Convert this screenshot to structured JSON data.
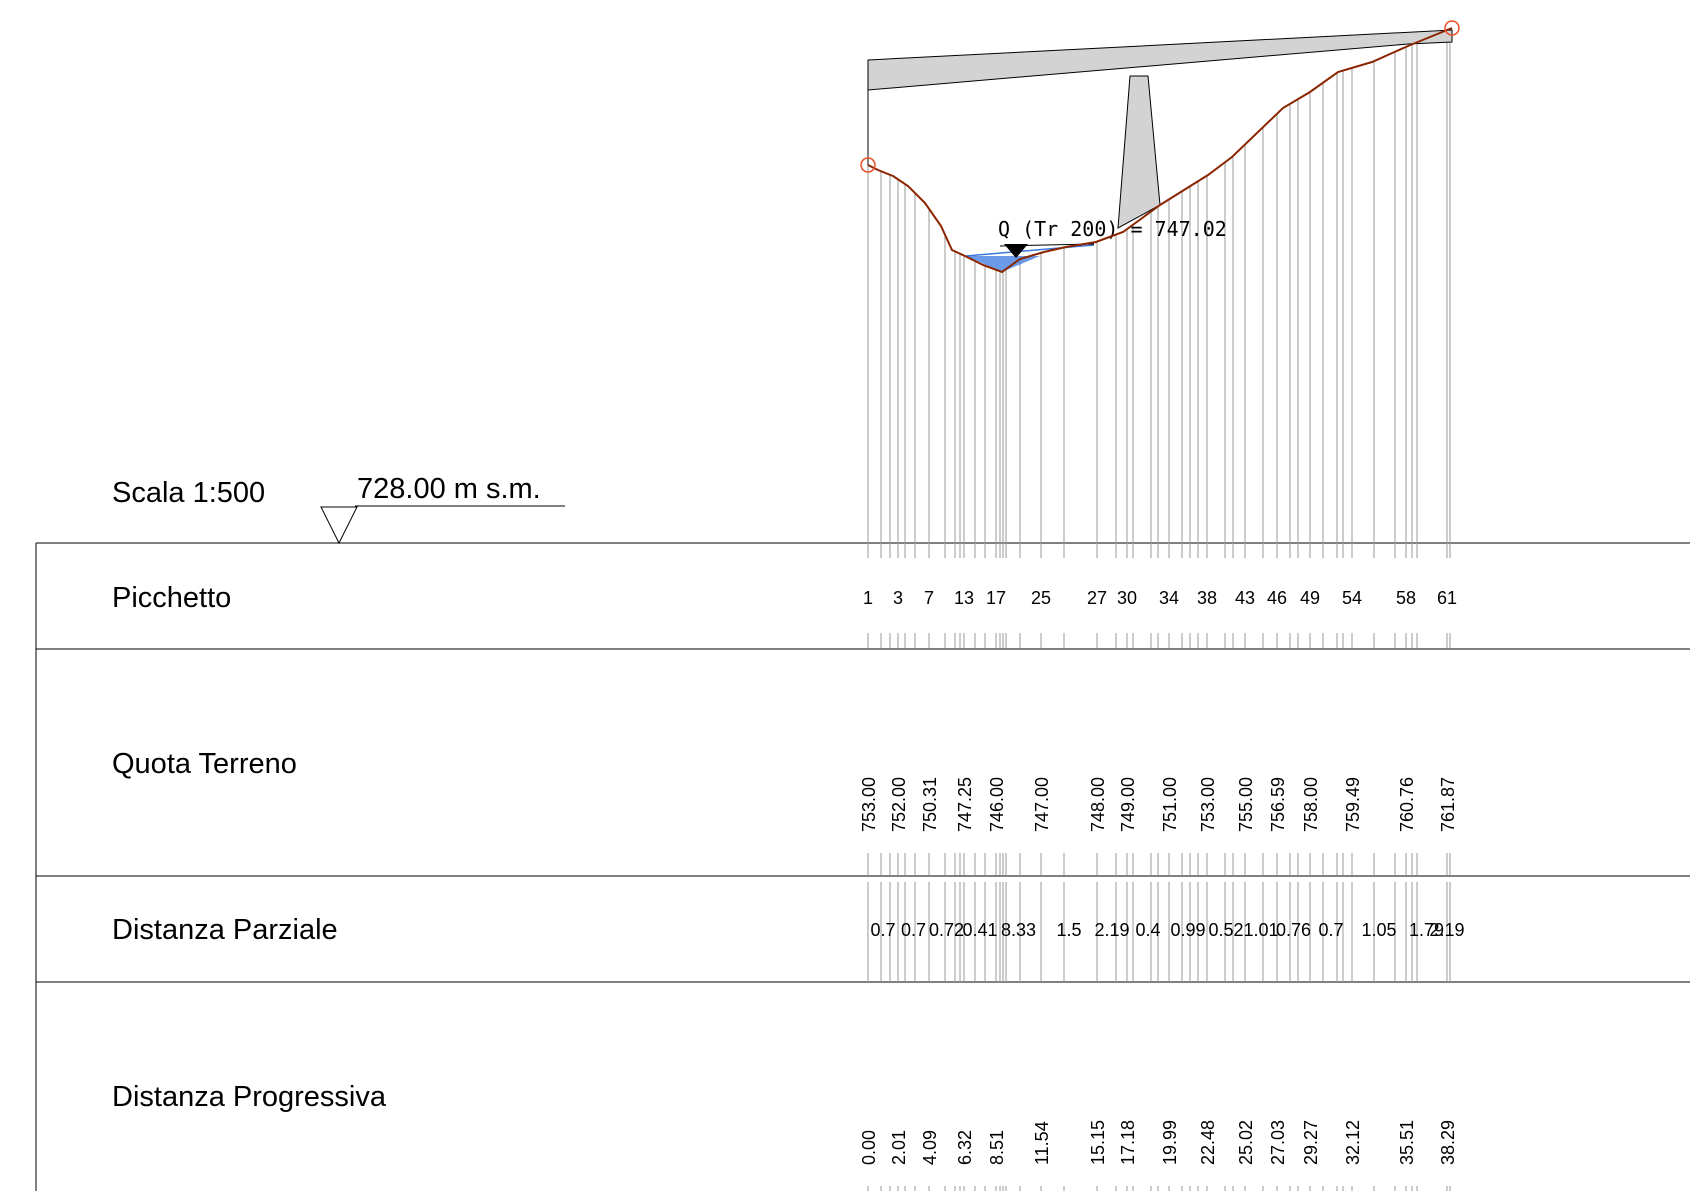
{
  "header": {
    "scale": "Scala 1:500",
    "datum": "728.00 m s.m."
  },
  "rows": {
    "picchetto": "Picchetto",
    "quota": "Quota Terreno",
    "parziale": "Distanza Parziale",
    "progressiva": "Distanza Progressiva"
  },
  "water": {
    "label": "Q (Tr 200) = 747.02",
    "level": 747.02
  },
  "colors": {
    "terrain": "#8b2500",
    "water": "#3a78e0",
    "structure": "#d3d3d3",
    "endpoint": "#e8502a",
    "guide": "#9a9a9a"
  },
  "chart_data": {
    "type": "line",
    "datum": 728.0,
    "picchetto_labels": [
      "1",
      "3",
      "7",
      "13",
      "17",
      "25",
      "27",
      "30",
      "34",
      "38",
      "43",
      "46",
      "49",
      "54",
      "58",
      "61"
    ],
    "quota_terreno": [
      "753.00",
      "752.00",
      "750.31",
      "747.25",
      "746.00",
      "747.00",
      "748.00",
      "749.00",
      "751.00",
      "753.00",
      "755.00",
      "756.59",
      "758.00",
      "759.49",
      "760.76",
      "761.87"
    ],
    "distanza_parziale": [
      "0.7",
      "0.7",
      "0.72",
      "0.41",
      "8.33",
      "1.5",
      "2.19",
      "0.4",
      "0.99",
      "0.52",
      "1.01",
      "0.76",
      "0.7",
      "1.05",
      "1.79",
      "2.19"
    ],
    "distanza_progressiva": [
      "0.00",
      "2.01",
      "4.09",
      "6.32",
      "8.51",
      "11.54",
      "15.15",
      "17.18",
      "19.99",
      "22.48",
      "25.02",
      "27.03",
      "29.27",
      "32.12",
      "35.51",
      "38.29"
    ],
    "profile_x": [
      0.0,
      2.01,
      4.09,
      6.32,
      8.51,
      11.54,
      15.15,
      17.18,
      19.99,
      22.48,
      25.02,
      27.03,
      29.27,
      32.12,
      35.51,
      38.29
    ],
    "profile_y": [
      753.0,
      752.0,
      750.31,
      747.25,
      746.0,
      747.0,
      748.0,
      749.0,
      751.0,
      753.0,
      755.0,
      756.59,
      758.0,
      759.49,
      760.76,
      761.87
    ]
  }
}
